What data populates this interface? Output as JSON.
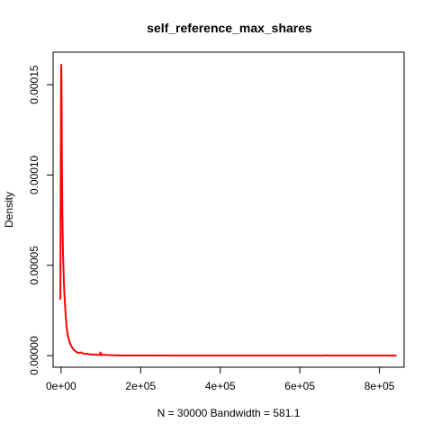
{
  "chart_data": {
    "type": "line",
    "title": "self_reference_max_shares",
    "xlabel": "N = 30000   Bandwidth = 581.1",
    "ylabel": "Density",
    "xlim": [
      -20000,
      862000
    ],
    "ylim": [
      -6.4e-06,
      0.000168
    ],
    "x_ticks": [
      0,
      200000,
      400000,
      600000,
      800000
    ],
    "x_tick_labels": [
      "0e+00",
      "2e+05",
      "4e+05",
      "6e+05",
      "8e+05"
    ],
    "y_ticks": [
      0,
      5e-05,
      0.0001,
      0.00015
    ],
    "y_tick_labels": [
      "0.00000",
      "0.00005",
      "0.00010",
      "0.00015"
    ],
    "grid": false,
    "series": [
      {
        "color": "#ff0000",
        "x": [
          -1700,
          -1000,
          0,
          600,
          1100,
          1600,
          2100,
          2600,
          3200,
          4000,
          5000,
          6500,
          8000,
          10000,
          12000,
          14000,
          17000,
          20000,
          24000,
          28000,
          32000,
          36000,
          40000,
          45000,
          50000,
          55000,
          60000,
          66000,
          72000,
          80000,
          90000,
          97000,
          99000,
          101000,
          105000,
          115000,
          130000,
          150000,
          180000,
          220000,
          300000,
          400000,
          500000,
          600000,
          660000,
          665000,
          670000,
          700000,
          750000,
          800000,
          843000
        ],
        "y": [
          3.1e-05,
          9e-05,
          0.00015,
          0.000161,
          0.000152,
          0.00013,
          0.00011,
          9.3e-05,
          8e-05,
          6.8e-05,
          5.6e-05,
          4.5e-05,
          3.6e-05,
          2.8e-05,
          2.1e-05,
          1.6e-05,
          1.1e-05,
          8.5e-06,
          6e-06,
          4.5e-06,
          3.2e-06,
          2.5e-06,
          1.8e-06,
          1.5e-06,
          1.8e-06,
          1.2e-06,
          9e-07,
          1.1e-06,
          7e-07,
          6e-07,
          5e-07,
          4e-07,
          1.8e-06,
          3e-07,
          5e-07,
          3e-07,
          2e-07,
          1e-07,
          1e-07,
          5e-08,
          3e-08,
          2e-08,
          2e-08,
          2e-08,
          2e-08,
          2e-07,
          2e-08,
          3e-08,
          1e-08,
          1e-08,
          1e-08
        ]
      }
    ]
  }
}
